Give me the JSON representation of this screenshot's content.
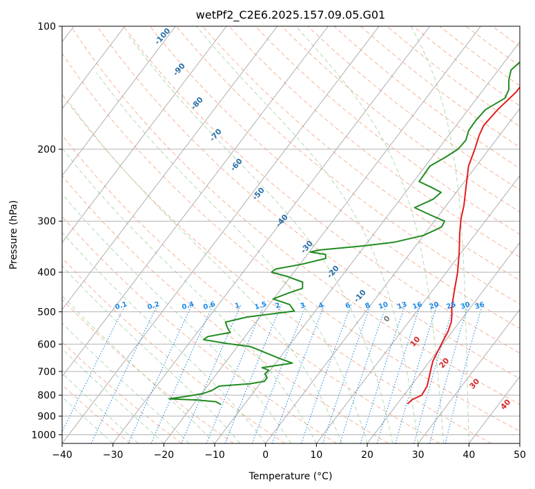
{
  "chart_data": {
    "type": "line",
    "chart_kind": "skew-T log-P diagram",
    "title": "wetPf2_C2E6.2025.157.09.05.G01",
    "xlabel": "Temperature (°C)",
    "ylabel": "Pressure (hPa)",
    "xlim": [
      -40,
      50
    ],
    "ylim": [
      1050,
      100
    ],
    "y_scale": "log",
    "grid": true,
    "x_ticks": [
      "−40",
      "−30",
      "−20",
      "−10",
      "0",
      "10",
      "20",
      "30",
      "40",
      "50"
    ],
    "y_ticks": [
      "100",
      "200",
      "300",
      "400",
      "500",
      "600",
      "700",
      "800",
      "900",
      "1000"
    ],
    "series": [
      {
        "name": "",
        "role": "temperature",
        "color": "#e31a1c",
        "points": [
          [
            22,
            840
          ],
          [
            22.3,
            820
          ],
          [
            23.5,
            800
          ],
          [
            23.2,
            760
          ],
          [
            22.2,
            720
          ],
          [
            21.4,
            690
          ],
          [
            20.6,
            660
          ],
          [
            20.2,
            630
          ],
          [
            19.6,
            590
          ],
          [
            19.2,
            560
          ],
          [
            18.4,
            530
          ],
          [
            17.5,
            510
          ],
          [
            16.4,
            490
          ],
          [
            14.6,
            450
          ],
          [
            12.2,
            400
          ],
          [
            9.7,
            360
          ],
          [
            6.7,
            320
          ],
          [
            4.8,
            295
          ],
          [
            3.5,
            275
          ],
          [
            0.9,
            245
          ],
          [
            -1.5,
            220
          ],
          [
            -2.8,
            200
          ],
          [
            -4.0,
            185
          ],
          [
            -4.6,
            175
          ],
          [
            -4.2,
            160
          ],
          [
            -3.2,
            145
          ],
          [
            -3.2,
            140
          ],
          [
            -2.2,
            135
          ],
          [
            0.0,
            130
          ],
          [
            2.5,
            122
          ],
          [
            4.8,
            112
          ],
          [
            6.3,
            104
          ],
          [
            6.8,
            100
          ]
        ]
      },
      {
        "name": "",
        "role": "dewpoint",
        "color": "#1f8a1f",
        "points": [
          [
            -14.6,
            843
          ],
          [
            -16.0,
            830
          ],
          [
            -20.0,
            822
          ],
          [
            -25.6,
            817
          ],
          [
            -22.5,
            805
          ],
          [
            -19.8,
            793
          ],
          [
            -18.5,
            780
          ],
          [
            -17.7,
            760
          ],
          [
            -12.0,
            750
          ],
          [
            -9.5,
            740
          ],
          [
            -9.5,
            725
          ],
          [
            -10.5,
            710
          ],
          [
            -10.3,
            695
          ],
          [
            -12.0,
            685
          ],
          [
            -6.7,
            668
          ],
          [
            -10.0,
            650
          ],
          [
            -13.5,
            630
          ],
          [
            -17.5,
            608
          ],
          [
            -22.5,
            598
          ],
          [
            -27.7,
            585
          ],
          [
            -27.3,
            575
          ],
          [
            -23.5,
            562
          ],
          [
            -24.7,
            548
          ],
          [
            -26.0,
            530
          ],
          [
            -22.5,
            515
          ],
          [
            -14.1,
            498
          ],
          [
            -16.0,
            480
          ],
          [
            -20.1,
            465
          ],
          [
            -18.0,
            450
          ],
          [
            -15.9,
            438
          ],
          [
            -16.8,
            423
          ],
          [
            -20.6,
            410
          ],
          [
            -24.4,
            400
          ],
          [
            -24.1,
            393
          ],
          [
            -19.5,
            382
          ],
          [
            -15.8,
            370
          ],
          [
            -16.4,
            362
          ],
          [
            -19.8,
            357
          ],
          [
            -18.3,
            353
          ],
          [
            -10.4,
            345
          ],
          [
            -4.8,
            338
          ],
          [
            0.0,
            325
          ],
          [
            2.3,
            310
          ],
          [
            2.0,
            300
          ],
          [
            -1.6,
            290
          ],
          [
            -5.9,
            278
          ],
          [
            -3.5,
            265
          ],
          [
            -3.0,
            255
          ],
          [
            -6.0,
            247
          ],
          [
            -8.9,
            240
          ],
          [
            -9.0,
            230
          ],
          [
            -9.1,
            220
          ],
          [
            -7.5,
            210
          ],
          [
            -6.1,
            200
          ],
          [
            -5.9,
            190
          ],
          [
            -6.8,
            180
          ],
          [
            -6.9,
            170
          ],
          [
            -6.6,
            160
          ],
          [
            -4.5,
            150
          ],
          [
            -5.0,
            143
          ],
          [
            -6.5,
            135
          ],
          [
            -7.5,
            128
          ],
          [
            -6.7,
            120
          ],
          [
            -5.0,
            113
          ],
          [
            -2.8,
            106
          ],
          [
            -0.8,
            100
          ]
        ]
      }
    ],
    "background_lines": {
      "isotherm_skew_labels": [
        "-100",
        "-90",
        "-80",
        "-70",
        "-60",
        "-50",
        "-40",
        "-30",
        "-20",
        "-10",
        "0",
        "10",
        "20",
        "30",
        "40"
      ],
      "isotherm_label_color": "#2a6fa8",
      "warm_isotherm_label_color": "#d62728",
      "zero_label_color": "#777777",
      "mixing_ratio_labels": [
        "0.1",
        "0.2",
        "0.4",
        "0.6",
        "1",
        "1.5",
        "2",
        "3",
        "4",
        "6",
        "8",
        "10",
        "13",
        "16",
        "20",
        "25",
        "30",
        "36"
      ],
      "mixing_ratio_values": [
        0.1,
        0.2,
        0.4,
        0.6,
        1,
        1.5,
        2,
        3,
        4,
        6,
        8,
        10,
        13,
        16,
        20,
        25,
        30,
        36
      ],
      "mixing_ratio_color": "#1e88e5",
      "dry_adiabat_color": "#f4a582",
      "moist_adiabat_color": "#a6d7a6",
      "isotherm_color": "#999999"
    }
  }
}
